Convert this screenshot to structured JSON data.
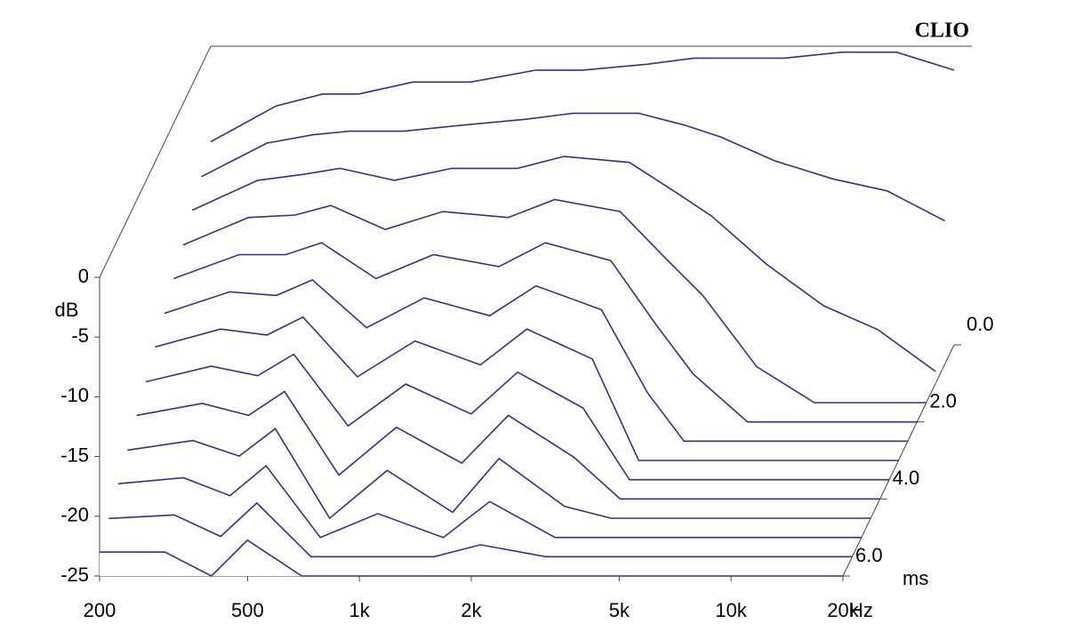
{
  "chart_data": {
    "type": "waterfall",
    "brand": "CLIO",
    "y_label": "dB",
    "x_unit": "Hz",
    "z_unit": "ms",
    "color": "#2e3192",
    "log_x": true,
    "x": [
      200,
      300,
      400,
      500,
      700,
      1000,
      1500,
      2000,
      3000,
      4000,
      5000,
      7000,
      10000,
      14000,
      20000
    ],
    "z": [
      0,
      0.5,
      1,
      1.5,
      2,
      2.5,
      3,
      3.5,
      4,
      4.5,
      5,
      5.5,
      6
    ],
    "values": [
      [
        -8,
        -5,
        -4,
        -4,
        -3,
        -3,
        -2,
        -2,
        -1.5,
        -1,
        -1,
        -1,
        -0.5,
        -0.5,
        -2
      ],
      [
        -9.3,
        -6.5,
        -5.8,
        -5.5,
        -5.5,
        -5,
        -4.5,
        -4,
        -4,
        -5,
        -6,
        -8,
        -9.5,
        -10.5,
        -13
      ],
      [
        -10.5,
        -8,
        -7.5,
        -7,
        -8,
        -7,
        -7,
        -6,
        -6.5,
        -9,
        -11,
        -15,
        -18.5,
        -20.5,
        -24
      ],
      [
        -11.8,
        -9.5,
        -9.3,
        -8.5,
        -10.5,
        -9,
        -9.5,
        -8,
        -9,
        -13,
        -16,
        -22,
        -25,
        -25,
        -25
      ],
      [
        -13,
        -11,
        -11,
        -10,
        -13,
        -11,
        -12,
        -10,
        -11.5,
        -17,
        -21,
        -25,
        -25,
        -25,
        -25
      ],
      [
        -14.3,
        -12.5,
        -12.8,
        -11.5,
        -15.5,
        -13,
        -14.5,
        -12,
        -14,
        -21,
        -25,
        -25,
        -25,
        -25,
        -25
      ],
      [
        -15.5,
        -14,
        -14.5,
        -13,
        -18,
        -15,
        -17,
        -14,
        -16.5,
        -25,
        -25,
        -25,
        -25,
        -25,
        -25
      ],
      [
        -16.8,
        -15.5,
        -16.3,
        -14.5,
        -20.5,
        -17,
        -19.5,
        -16,
        -19,
        -25,
        -25,
        -25,
        -25,
        -25,
        -25
      ],
      [
        -18,
        -17,
        -18,
        -16,
        -23,
        -19,
        -22,
        -18,
        -21.5,
        -25,
        -25,
        -25,
        -25,
        -25,
        -25
      ],
      [
        -19.3,
        -18.5,
        -19.8,
        -17.5,
        -25,
        -21,
        -24.5,
        -20,
        -24,
        -25,
        -25,
        -25,
        -25,
        -25,
        -25
      ],
      [
        -20.5,
        -20,
        -21.5,
        -19,
        -25,
        -23,
        -25,
        -22,
        -25,
        -25,
        -25,
        -25,
        -25,
        -25,
        -25
      ],
      [
        -21.8,
        -21.5,
        -23.3,
        -20.5,
        -25,
        -25,
        -25,
        -24,
        -25,
        -25,
        -25,
        -25,
        -25,
        -25,
        -25
      ],
      [
        -23,
        -23,
        -25,
        -22,
        -25,
        -25,
        -25,
        -25,
        -25,
        -25,
        -25,
        -25,
        -25,
        -25,
        -25
      ]
    ],
    "xlim": [
      200,
      20000
    ],
    "xticks": [
      200,
      500,
      {
        "value": 1000,
        "label": "1k"
      },
      {
        "value": 2000,
        "label": "2k"
      },
      {
        "value": 5000,
        "label": "5k"
      },
      {
        "value": 10000,
        "label": "10k"
      },
      {
        "value": 20000,
        "label": "20k"
      }
    ],
    "ylim": [
      -25,
      0
    ],
    "yticks": [
      0,
      -5,
      -10,
      -15,
      -20,
      -25
    ],
    "zlim": [
      0,
      6
    ],
    "zticks": [
      {
        "value": 0,
        "label": "0.0"
      },
      {
        "value": 2,
        "label": "2.0"
      },
      {
        "value": 4,
        "label": "4.0"
      },
      {
        "value": 6,
        "label": "6.0"
      }
    ]
  }
}
